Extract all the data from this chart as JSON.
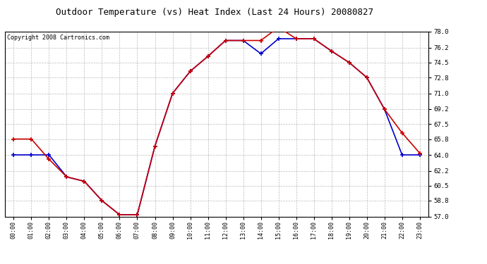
{
  "title": "Outdoor Temperature (vs) Heat Index (Last 24 Hours) 20080827",
  "copyright": "Copyright 2008 Cartronics.com",
  "x_labels": [
    "00:00",
    "01:00",
    "02:00",
    "03:00",
    "04:00",
    "05:00",
    "06:00",
    "07:00",
    "08:00",
    "09:00",
    "10:00",
    "11:00",
    "12:00",
    "13:00",
    "14:00",
    "15:00",
    "16:00",
    "17:00",
    "18:00",
    "19:00",
    "20:00",
    "21:00",
    "22:00",
    "23:00"
  ],
  "y_ticks": [
    57.0,
    58.8,
    60.5,
    62.2,
    64.0,
    65.8,
    67.5,
    69.2,
    71.0,
    72.8,
    74.5,
    76.2,
    78.0
  ],
  "ylim": [
    57.0,
    78.0
  ],
  "temp_red": [
    65.8,
    65.8,
    63.5,
    61.5,
    61.0,
    58.8,
    57.2,
    57.2,
    65.0,
    71.0,
    73.5,
    75.2,
    77.0,
    77.0,
    77.0,
    78.5,
    77.2,
    77.2,
    75.8,
    74.5,
    72.8,
    69.2,
    66.5,
    64.2
  ],
  "temp_blue": [
    64.0,
    64.0,
    64.0,
    61.5,
    61.0,
    58.8,
    57.2,
    57.2,
    65.0,
    71.0,
    73.5,
    75.2,
    77.0,
    77.0,
    75.5,
    77.2,
    77.2,
    77.2,
    75.8,
    74.5,
    72.8,
    69.2,
    64.0,
    64.0
  ],
  "line_color_red": "#cc0000",
  "line_color_blue": "#0000cc",
  "bg_color": "#ffffff",
  "plot_bg": "#ffffff",
  "grid_color": "#bbbbbb",
  "title_fontsize": 9,
  "copyright_fontsize": 6
}
